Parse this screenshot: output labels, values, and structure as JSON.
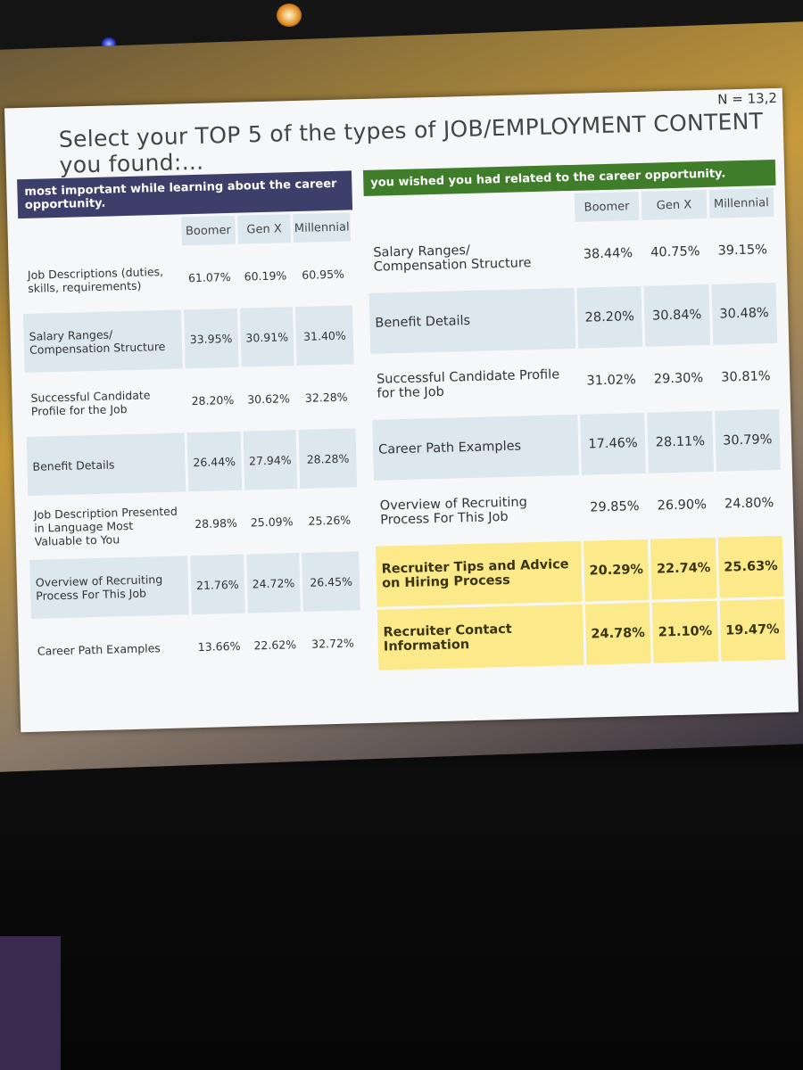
{
  "slide": {
    "title": "Select your TOP 5 of the types of JOB/EMPLOYMENT CONTENT you found:...",
    "n_label": "N = 13,2",
    "left_table": {
      "header": "most important while learning about the career opportunity.",
      "columns": [
        "Boomer",
        "Gen X",
        "Millennial"
      ],
      "rows": [
        {
          "label": "Job Descriptions (duties, skills, requirements)",
          "values": [
            "61.07%",
            "60.19%",
            "60.95%"
          ]
        },
        {
          "label": "Salary Ranges/ Compensation Structure",
          "values": [
            "33.95%",
            "30.91%",
            "31.40%"
          ]
        },
        {
          "label": "Successful Candidate Profile for the Job",
          "values": [
            "28.20%",
            "30.62%",
            "32.28%"
          ]
        },
        {
          "label": "Benefit Details",
          "values": [
            "26.44%",
            "27.94%",
            "28.28%"
          ]
        },
        {
          "label": "Job Description Presented in Language Most Valuable to You",
          "values": [
            "28.98%",
            "25.09%",
            "25.26%"
          ]
        },
        {
          "label": "Overview of Recruiting Process For This Job",
          "values": [
            "21.76%",
            "24.72%",
            "26.45%"
          ]
        },
        {
          "label": "Career Path Examples",
          "values": [
            "13.66%",
            "22.62%",
            "32.72%"
          ]
        }
      ]
    },
    "right_table": {
      "header": "you wished you had  related to the career opportunity.",
      "columns": [
        "Boomer",
        "Gen X",
        "Millennial"
      ],
      "rows": [
        {
          "label": "Salary Ranges/ Compensation Structure",
          "values": [
            "38.44%",
            "40.75%",
            "39.15%"
          ]
        },
        {
          "label": "Benefit Details",
          "values": [
            "28.20%",
            "30.84%",
            "30.48%"
          ]
        },
        {
          "label": "Successful Candidate Profile for the Job",
          "values": [
            "31.02%",
            "29.30%",
            "30.81%"
          ]
        },
        {
          "label": "Career Path Examples",
          "values": [
            "17.46%",
            "28.11%",
            "30.79%"
          ]
        },
        {
          "label": "Overview of Recruiting Process For This Job",
          "values": [
            "29.85%",
            "26.90%",
            "24.80%"
          ]
        },
        {
          "label": "Recruiter Tips and Advice on Hiring Process",
          "values": [
            "20.29%",
            "22.74%",
            "25.63%"
          ]
        },
        {
          "label": "Recruiter Contact Information",
          "values": [
            "24.78%",
            "21.10%",
            "19.47%"
          ]
        }
      ]
    }
  }
}
